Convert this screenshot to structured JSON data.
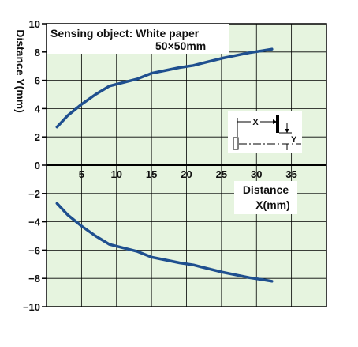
{
  "chart_data": {
    "type": "line",
    "title": "",
    "annotation": {
      "line1": "Sensing object: White paper",
      "line2": "50×50mm"
    },
    "xlabel": "Distance X(mm)",
    "xlabel_line1": "Distance",
    "xlabel_line2": "X(mm)",
    "ylabel": "Distance Y(mm)",
    "xlim": [
      0,
      40
    ],
    "ylim": [
      -10,
      10
    ],
    "x_ticks": [
      5,
      10,
      15,
      20,
      25,
      30,
      35
    ],
    "y_ticks": [
      10,
      8,
      6,
      4,
      2,
      0,
      -2,
      -4,
      -6,
      -8,
      -10
    ],
    "x_tick_labels": [
      "5",
      "10",
      "15",
      "20",
      "25",
      "30",
      "35"
    ],
    "y_tick_labels": [
      "10",
      "8",
      "6",
      "4",
      "2",
      "0",
      "−2",
      "−4",
      "−6",
      "−8",
      "−10"
    ],
    "grid": true,
    "background_color": "#e6f4df",
    "line_color": "#1f4f8f",
    "series": [
      {
        "x": [
          1.5,
          3,
          5,
          7,
          9,
          11,
          13,
          15,
          17,
          19,
          21,
          23,
          25,
          27,
          29,
          31,
          32.2
        ],
        "y": [
          2.7,
          3.5,
          4.3,
          5.0,
          5.6,
          5.85,
          6.1,
          6.5,
          6.7,
          6.9,
          7.05,
          7.3,
          7.55,
          7.75,
          7.95,
          8.1,
          8.2
        ]
      },
      {
        "x": [
          1.5,
          3,
          5,
          7,
          9,
          11,
          13,
          15,
          17,
          19,
          21,
          23,
          25,
          27,
          29,
          31,
          32.2
        ],
        "y": [
          -2.7,
          -3.5,
          -4.3,
          -5.0,
          -5.6,
          -5.85,
          -6.1,
          -6.5,
          -6.7,
          -6.9,
          -7.05,
          -7.3,
          -7.55,
          -7.75,
          -7.95,
          -8.1,
          -8.2
        ]
      }
    ],
    "inset": {
      "x_label": "X",
      "y_label": "Y",
      "icon": "sensor-diagram-icon"
    }
  }
}
